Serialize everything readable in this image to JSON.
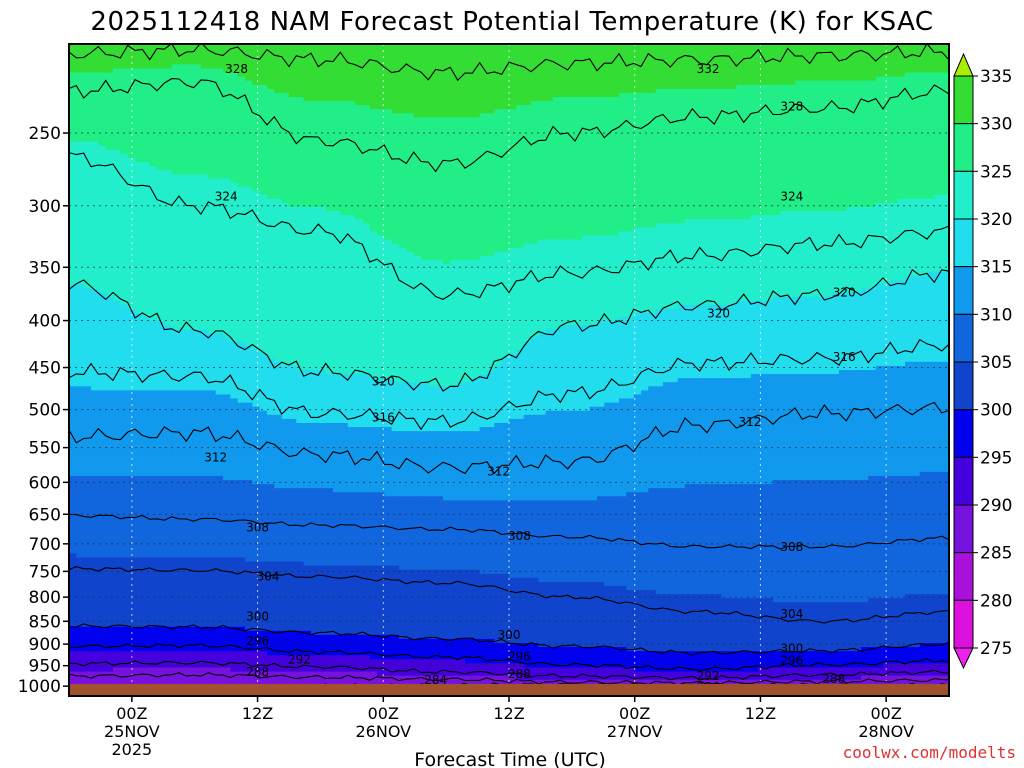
{
  "chart_data": {
    "type": "heatmap",
    "title": "2025112418 NAM Forecast Potential Temperature (K) for KSAC",
    "xlabel": "Forecast Time (UTC)",
    "ylabel": "",
    "credit": "coolwx.com/modelts",
    "y_ticks": [
      250,
      300,
      350,
      400,
      450,
      500,
      550,
      600,
      650,
      700,
      750,
      800,
      850,
      900,
      950,
      1000
    ],
    "y_range_hpa": [
      1025,
      200
    ],
    "x_range_hours": [
      18,
      102
    ],
    "x_ticks": [
      {
        "hour": 24,
        "lines": [
          "00Z",
          "25NOV",
          "2025"
        ]
      },
      {
        "hour": 36,
        "lines": [
          "12Z"
        ]
      },
      {
        "hour": 48,
        "lines": [
          "00Z",
          "26NOV"
        ]
      },
      {
        "hour": 60,
        "lines": [
          "12Z"
        ]
      },
      {
        "hour": 72,
        "lines": [
          "00Z",
          "27NOV"
        ]
      },
      {
        "hour": 84,
        "lines": [
          "12Z"
        ]
      },
      {
        "hour": 96,
        "lines": [
          "00Z",
          "28NOV"
        ]
      }
    ],
    "colorbar": {
      "labels": [
        335,
        330,
        325,
        320,
        315,
        310,
        305,
        300,
        295,
        290,
        285,
        280,
        275
      ],
      "colors": [
        "#aaee00",
        "#33dd33",
        "#22ee88",
        "#22eecc",
        "#22ddee",
        "#1199ee",
        "#1166dd",
        "#1144cc",
        "#0000ee",
        "#4400dd",
        "#7711dd",
        "#aa11dd",
        "#dd11dd",
        "#ee22ee"
      ]
    },
    "series": [
      {
        "level": 284,
        "hours": [
          18,
          30,
          42,
          54,
          66,
          78,
          90,
          102
        ],
        "hpa": [
          1005,
          1002,
          1000,
          998,
          997,
          1000,
          998,
          999
        ]
      },
      {
        "level": 288,
        "hours": [
          18,
          30,
          42,
          54,
          66,
          78,
          90,
          102
        ],
        "hpa": [
          975,
          972,
          978,
          983,
          990,
          992,
          988,
          985
        ]
      },
      {
        "level": 292,
        "hours": [
          18,
          30,
          42,
          54,
          66,
          78,
          90,
          102
        ],
        "hpa": [
          945,
          943,
          953,
          965,
          975,
          980,
          972,
          965
        ]
      },
      {
        "level": 296,
        "hours": [
          18,
          30,
          42,
          54,
          66,
          78,
          90,
          102
        ],
        "hpa": [
          905,
          903,
          918,
          930,
          948,
          958,
          948,
          938
        ]
      },
      {
        "level": 300,
        "hours": [
          18,
          30,
          42,
          54,
          66,
          78,
          90,
          102
        ],
        "hpa": [
          860,
          862,
          875,
          888,
          905,
          920,
          915,
          900
        ]
      },
      {
        "level": 304,
        "hours": [
          18,
          30,
          42,
          54,
          66,
          78,
          90,
          102
        ],
        "hpa": [
          745,
          748,
          760,
          772,
          800,
          830,
          850,
          830
        ]
      },
      {
        "level": 308,
        "hours": [
          18,
          30,
          42,
          54,
          66,
          78,
          90,
          102
        ],
        "hpa": [
          652,
          658,
          668,
          675,
          688,
          705,
          705,
          690
        ]
      },
      {
        "level": 312,
        "hours": [
          18,
          30,
          42,
          54,
          66,
          78,
          90,
          102
        ],
        "hpa": [
          535,
          530,
          560,
          578,
          570,
          520,
          505,
          498
        ]
      },
      {
        "level": 316,
        "hours": [
          18,
          30,
          42,
          54,
          66,
          78,
          90,
          102
        ],
        "hpa": [
          455,
          460,
          505,
          515,
          480,
          445,
          440,
          425
        ]
      },
      {
        "level": 320,
        "hours": [
          18,
          30,
          42,
          54,
          66,
          78,
          90,
          102
        ],
        "hpa": [
          365,
          410,
          455,
          470,
          405,
          385,
          375,
          355
        ]
      },
      {
        "level": 324,
        "hours": [
          18,
          30,
          42,
          54,
          66,
          78,
          90,
          102
        ],
        "hpa": [
          265,
          300,
          320,
          375,
          355,
          340,
          330,
          320
        ]
      },
      {
        "level": 328,
        "hours": [
          18,
          30,
          42,
          54,
          66,
          78,
          90,
          102
        ],
        "hpa": [
          225,
          220,
          255,
          270,
          250,
          240,
          235,
          225
        ]
      },
      {
        "level": 332,
        "hours": [
          18,
          30,
          42,
          54,
          66,
          78,
          90,
          102
        ],
        "hpa": [
          205,
          203,
          208,
          215,
          210,
          208,
          206,
          204
        ]
      }
    ],
    "contour_labels": [
      {
        "text": "328",
        "hour": 34,
        "hpa": 213
      },
      {
        "text": "332",
        "hour": 79,
        "hpa": 213
      },
      {
        "text": "328",
        "hour": 87,
        "hpa": 234
      },
      {
        "text": "324",
        "hour": 33,
        "hpa": 293
      },
      {
        "text": "324",
        "hour": 87,
        "hpa": 293
      },
      {
        "text": "320",
        "hour": 80,
        "hpa": 393
      },
      {
        "text": "320",
        "hour": 92,
        "hpa": 373
      },
      {
        "text": "320",
        "hour": 48,
        "hpa": 466
      },
      {
        "text": "316",
        "hour": 92,
        "hpa": 438
      },
      {
        "text": "316",
        "hour": 48,
        "hpa": 510
      },
      {
        "text": "312",
        "hour": 32,
        "hpa": 564
      },
      {
        "text": "312",
        "hour": 59,
        "hpa": 584
      },
      {
        "text": "312",
        "hour": 83,
        "hpa": 516
      },
      {
        "text": "308",
        "hour": 36,
        "hpa": 672
      },
      {
        "text": "308",
        "hour": 61,
        "hpa": 686
      },
      {
        "text": "308",
        "hour": 87,
        "hpa": 706
      },
      {
        "text": "304",
        "hour": 37,
        "hpa": 760
      },
      {
        "text": "304",
        "hour": 87,
        "hpa": 835
      },
      {
        "text": "300",
        "hour": 36,
        "hpa": 840
      },
      {
        "text": "300",
        "hour": 60,
        "hpa": 880
      },
      {
        "text": "300",
        "hour": 87,
        "hpa": 910
      },
      {
        "text": "296",
        "hour": 36,
        "hpa": 893
      },
      {
        "text": "296",
        "hour": 61,
        "hpa": 928
      },
      {
        "text": "296",
        "hour": 87,
        "hpa": 938
      },
      {
        "text": "292",
        "hour": 40,
        "hpa": 935
      },
      {
        "text": "292",
        "hour": 79,
        "hpa": 975
      },
      {
        "text": "288",
        "hour": 36,
        "hpa": 965
      },
      {
        "text": "288",
        "hour": 61,
        "hpa": 970
      },
      {
        "text": "288",
        "hour": 91,
        "hpa": 982
      },
      {
        "text": "284",
        "hour": 53,
        "hpa": 985
      },
      {
        "text": "284",
        "hour": 79,
        "hpa": 1002
      }
    ]
  }
}
